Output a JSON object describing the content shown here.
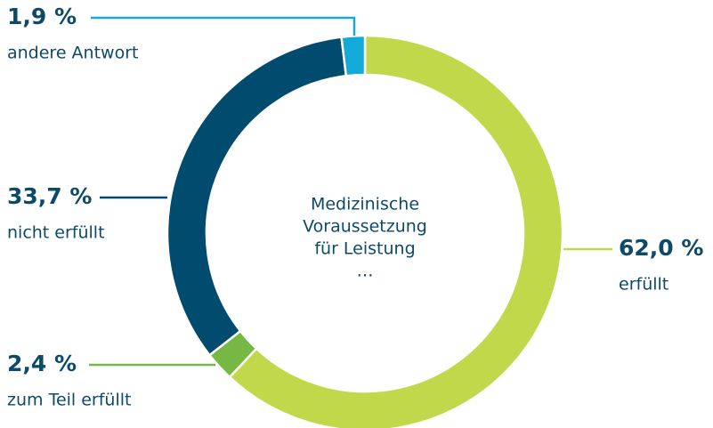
{
  "chart_data": {
    "type": "donut",
    "center_label": [
      "Medizinische",
      "Voraussetzung",
      "für Leistung",
      "…"
    ],
    "categories": [
      "erfüllt",
      "zum Teil erfüllt",
      "nicht erfüllt",
      "andere Antwort"
    ],
    "values": [
      62.0,
      2.4,
      33.7,
      1.9
    ],
    "value_labels": [
      "62,0 %",
      "2,4 %",
      "33,7 %",
      "1,9 %"
    ],
    "colors": [
      "#c1d84a",
      "#76b843",
      "#004b6e",
      "#13a9d9"
    ]
  }
}
